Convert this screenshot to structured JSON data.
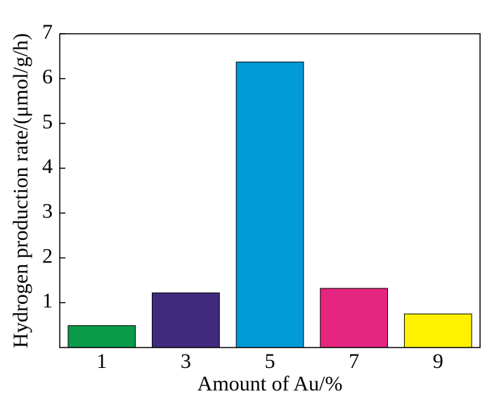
{
  "chart_data": {
    "type": "bar",
    "x_label": "Amount of Au/%",
    "y_label": "Hydrogen production rate/(μmol/g/h)",
    "categories": [
      "1",
      "3",
      "5",
      "7",
      "9"
    ],
    "values": [
      0.49,
      1.22,
      6.37,
      1.32,
      0.75
    ],
    "colors": [
      "#0a9a4a",
      "#3f2a7e",
      "#009ad8",
      "#e5257f",
      "#fff200"
    ],
    "ylim": [
      0,
      7
    ],
    "yticks": [
      1,
      2,
      3,
      4,
      5,
      6,
      7
    ],
    "grid": false
  }
}
